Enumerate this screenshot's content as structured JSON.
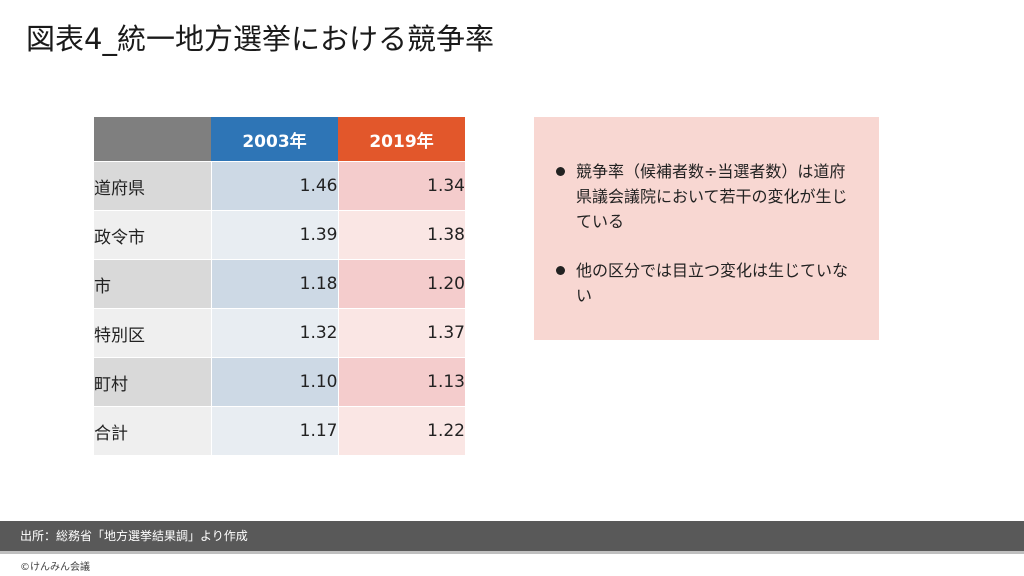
{
  "title": "図表4_統一地方選挙における競争率",
  "table": {
    "header": [
      "",
      "2003年",
      "2019年"
    ],
    "rows": [
      {
        "label": "道府県",
        "y2003": "1.46",
        "y2019": "1.34"
      },
      {
        "label": "政令市",
        "y2003": "1.39",
        "y2019": "1.38"
      },
      {
        "label": "市",
        "y2003": "1.18",
        "y2019": "1.20"
      },
      {
        "label": "特別区",
        "y2003": "1.32",
        "y2019": "1.37"
      },
      {
        "label": "町村",
        "y2003": "1.10",
        "y2019": "1.13"
      },
      {
        "label": "合計",
        "y2003": "1.17",
        "y2019": "1.22"
      }
    ]
  },
  "notes": [
    "競争率（候補者数÷当選者数）は道府県議会議院において若干の変化が生じている",
    "他の区分では目立つ変化は生じていない"
  ],
  "source": "出所：総務省「地方選挙結果調」より作成",
  "copyright": "©けんみん会議",
  "colors": {
    "header_2003": "#2e75b6",
    "header_2019": "#e2572b",
    "note_bg": "#f8d7d2",
    "source_bar": "#595959"
  }
}
